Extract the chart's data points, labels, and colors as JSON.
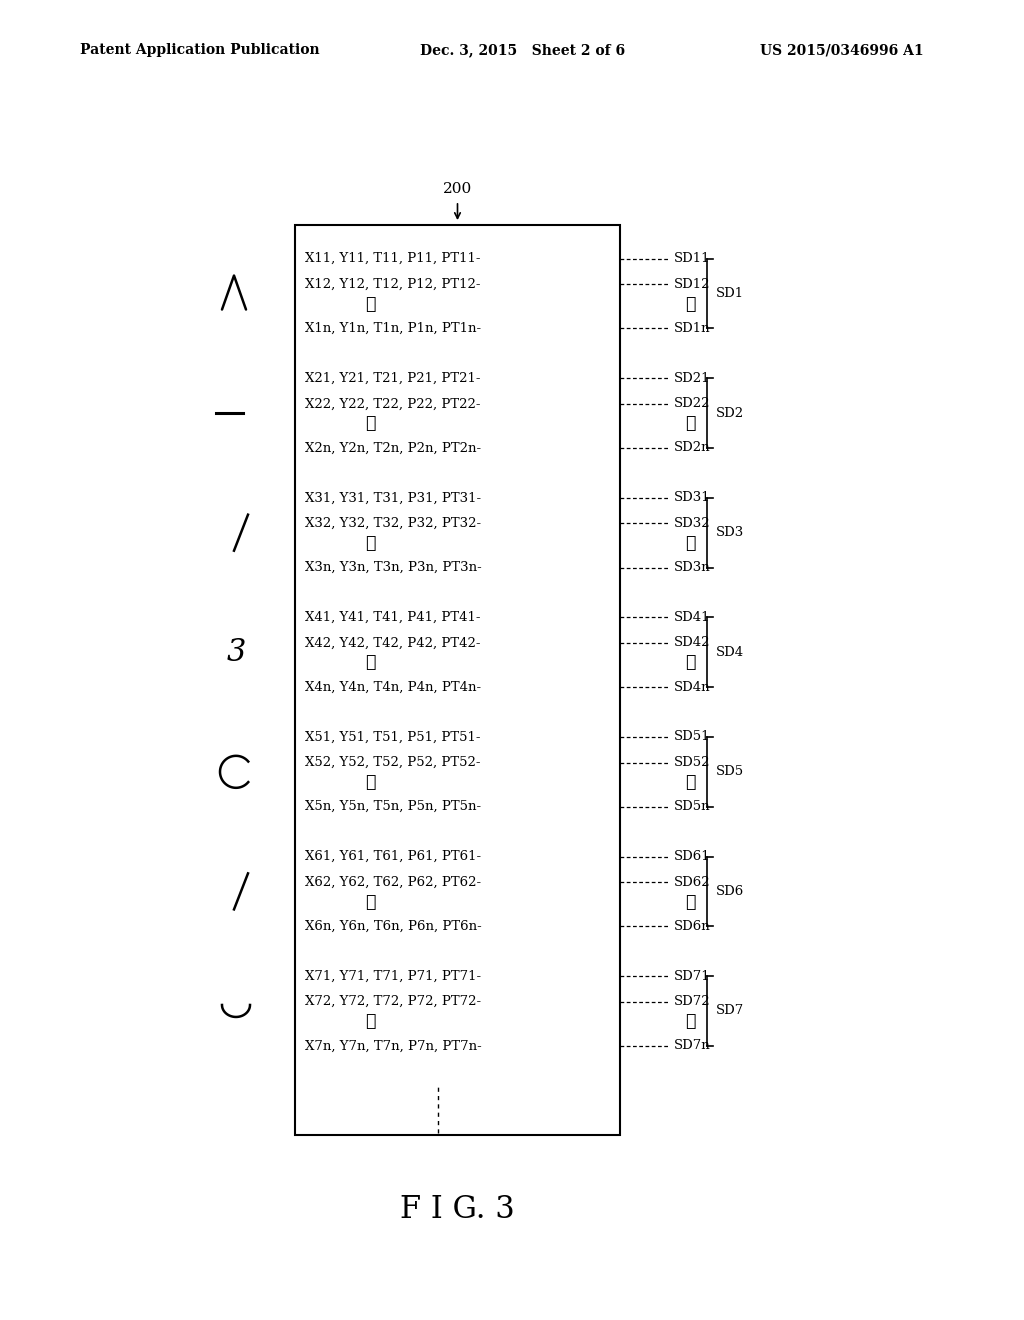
{
  "header_left": "Patent Application Publication",
  "header_mid": "Dec. 3, 2015   Sheet 2 of 6",
  "header_right": "US 2015/0346996 A1",
  "fig_label": "F I G. 3",
  "box_label": "200",
  "groups": [
    {
      "id": 1,
      "rows": [
        {
          "text": "X11, Y11, T11, P11, PT11",
          "sd": "SD11"
        },
        {
          "text": "X12, Y12, T12, P12, PT12",
          "sd": "SD12"
        },
        {
          "text": "X1n, Y1n, T1n, P1n, PT1n",
          "sd": "SD1n"
        }
      ],
      "bracket_label": "SD1"
    },
    {
      "id": 2,
      "rows": [
        {
          "text": "X21, Y21, T21, P21, PT21",
          "sd": "SD21"
        },
        {
          "text": "X22, Y22, T22, P22, PT22",
          "sd": "SD22"
        },
        {
          "text": "X2n, Y2n, T2n, P2n, PT2n",
          "sd": "SD2n"
        }
      ],
      "bracket_label": "SD2"
    },
    {
      "id": 3,
      "rows": [
        {
          "text": "X31, Y31, T31, P31, PT31",
          "sd": "SD31"
        },
        {
          "text": "X32, Y32, T32, P32, PT32",
          "sd": "SD32"
        },
        {
          "text": "X3n, Y3n, T3n, P3n, PT3n",
          "sd": "SD3n"
        }
      ],
      "bracket_label": "SD3"
    },
    {
      "id": 4,
      "rows": [
        {
          "text": "X41, Y41, T41, P41, PT41",
          "sd": "SD41"
        },
        {
          "text": "X42, Y42, T42, P42, PT42",
          "sd": "SD42"
        },
        {
          "text": "X4n, Y4n, T4n, P4n, PT4n",
          "sd": "SD4n"
        }
      ],
      "bracket_label": "SD4"
    },
    {
      "id": 5,
      "rows": [
        {
          "text": "X51, Y51, T51, P51, PT51",
          "sd": "SD51"
        },
        {
          "text": "X52, Y52, T52, P52, PT52",
          "sd": "SD52"
        },
        {
          "text": "X5n, Y5n, T5n, P5n, PT5n",
          "sd": "SD5n"
        }
      ],
      "bracket_label": "SD5"
    },
    {
      "id": 6,
      "rows": [
        {
          "text": "X61, Y61, T61, P61, PT61",
          "sd": "SD61"
        },
        {
          "text": "X62, Y62, T62, P62, PT62",
          "sd": "SD62"
        },
        {
          "text": "X6n, Y6n, T6n, P6n, PT6n",
          "sd": "SD6n"
        }
      ],
      "bracket_label": "SD6"
    },
    {
      "id": 7,
      "rows": [
        {
          "text": "X71, Y71, T71, P71, PT71",
          "sd": "SD71"
        },
        {
          "text": "X72, Y72, T72, P72, PT72",
          "sd": "SD72"
        },
        {
          "text": "X7n, Y7n, T7n, P7n, PT7n",
          "sd": "SD7n"
        }
      ],
      "bracket_label": "SD7"
    }
  ],
  "bg_color": "#ffffff",
  "text_color": "#000000",
  "box_color": "#000000",
  "font_size": 9.5,
  "header_font_size": 10
}
